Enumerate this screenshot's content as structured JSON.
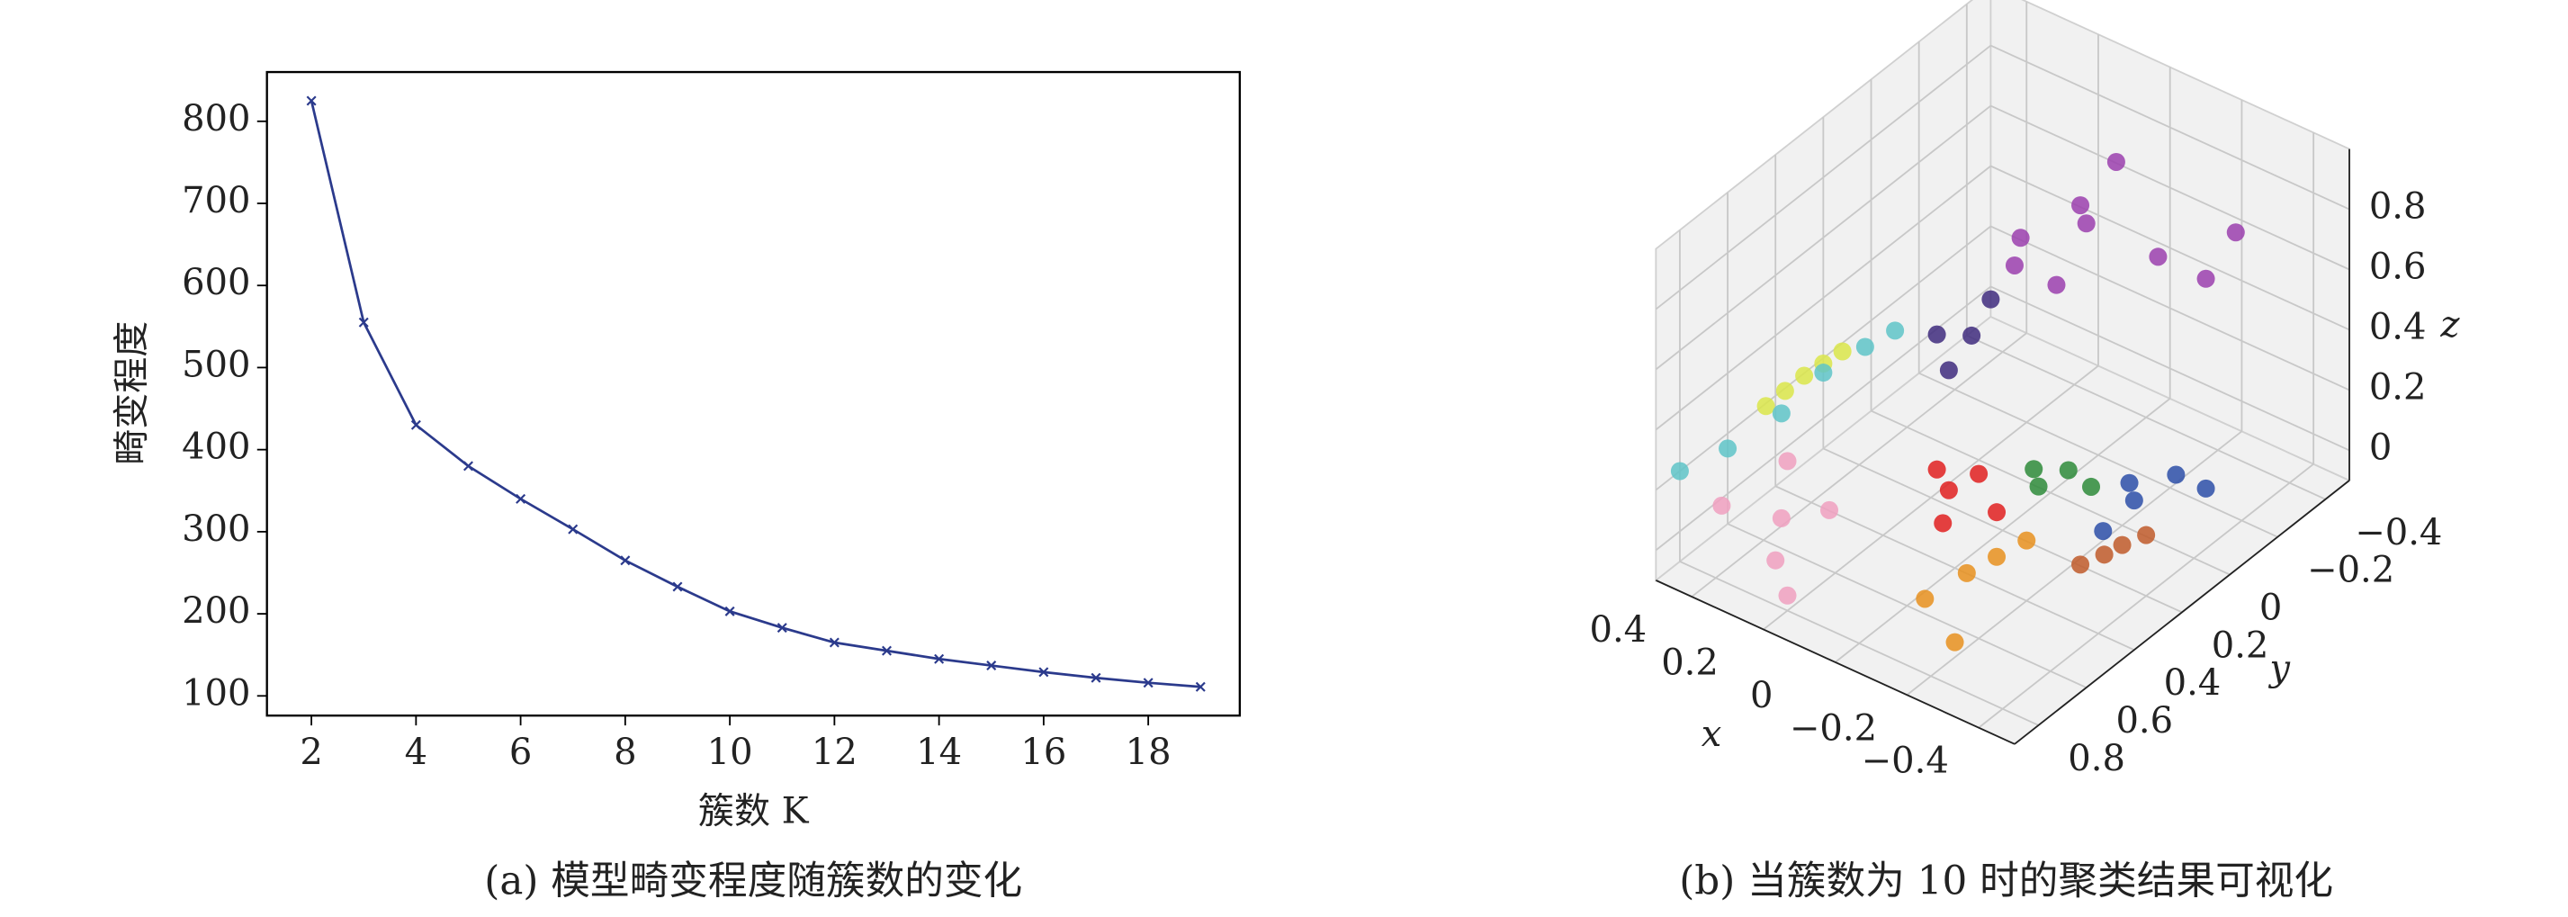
{
  "chart_data": [
    {
      "type": "line",
      "xlabel": "簇数 K",
      "ylabel": "畸变程度",
      "caption": "(a) 模型畸变程度随簇数的变化",
      "x": [
        2,
        3,
        4,
        5,
        6,
        7,
        8,
        9,
        10,
        11,
        12,
        13,
        14,
        15,
        16,
        17,
        18,
        19
      ],
      "values": [
        825,
        555,
        430,
        380,
        340,
        303,
        265,
        233,
        203,
        183,
        165,
        155,
        145,
        137,
        129,
        122,
        116,
        111
      ],
      "color": "#2b3a8c",
      "xlim": [
        1.15,
        19.75
      ],
      "ylim": [
        76,
        860
      ],
      "xticks": [
        2,
        4,
        6,
        8,
        10,
        12,
        14,
        16,
        18
      ],
      "yticks": [
        100,
        200,
        300,
        400,
        500,
        600,
        700,
        800
      ]
    },
    {
      "type": "scatter3d",
      "xlabel": "x",
      "ylabel": "y",
      "zlabel": "z",
      "caption": "(b) 当簇数为 10 时的聚类结果可视化",
      "xlim": [
        -0.5,
        0.5
      ],
      "ylim": [
        -0.5,
        0.9
      ],
      "zlim": [
        -0.1,
        1.0
      ],
      "xticks": [
        0.4,
        0.2,
        0,
        {
          "value": -0.2,
          "label": "−0.2"
        },
        {
          "value": -0.4,
          "label": "−0.4"
        }
      ],
      "yticks": [
        {
          "value": -0.4,
          "label": "−0.4"
        },
        {
          "value": -0.2,
          "label": "−0.2"
        },
        0,
        0.2,
        0.4,
        0.6,
        0.8
      ],
      "zticks": [
        0,
        0.2,
        0.4,
        0.6,
        0.8
      ],
      "series": [
        {
          "color": "#dbe64a",
          "x": [
            0.46,
            0.44,
            0.42,
            0.4,
            0.38
          ],
          "y": [
            0.5,
            0.45,
            0.4,
            0.35,
            0.3
          ],
          "z": [
            0.25,
            0.28,
            0.31,
            0.33,
            0.35
          ]
        },
        {
          "color": "#5fc4c8",
          "x": [
            0.5,
            0.5,
            0.45,
            0.4,
            0.35,
            0.3
          ],
          "y": [
            0.8,
            0.6,
            0.45,
            0.35,
            0.25,
            0.2
          ],
          "z": [
            0.2,
            0.15,
            0.2,
            0.3,
            0.35,
            0.4
          ]
        },
        {
          "color": "#f0a0c0",
          "x": [
            0.45,
            0.35,
            0.3,
            0.2,
            0.25,
            0.4
          ],
          "y": [
            0.7,
            0.6,
            0.7,
            0.8,
            0.55,
            0.5
          ],
          "z": [
            0.05,
            0.0,
            -0.05,
            -0.05,
            0.05,
            0.1
          ]
        },
        {
          "color": "#3f2c7e",
          "x": [
            0.15,
            0.12,
            0.1,
            0.15
          ],
          "y": [
            0.2,
            0.15,
            0.1,
            0.25
          ],
          "z": [
            0.35,
            0.45,
            0.55,
            0.5
          ]
        },
        {
          "color": "#9b3fae",
          "x": [
            0.05,
            0.0,
            -0.05,
            0.1,
            -0.1,
            -0.2,
            -0.25,
            0.05,
            -0.05
          ],
          "y": [
            -0.1,
            -0.15,
            -0.2,
            0.0,
            -0.3,
            -0.35,
            -0.4,
            0.05,
            -0.05
          ],
          "z": [
            0.5,
            0.7,
            0.9,
            0.6,
            0.55,
            0.5,
            0.65,
            0.75,
            0.85
          ]
        },
        {
          "color": "#e02020",
          "x": [
            0.05,
            0.0,
            0.05,
            -0.05,
            0.0
          ],
          "y": [
            0.35,
            0.3,
            0.4,
            0.3,
            0.45
          ],
          "z": [
            0.1,
            0.15,
            0.2,
            0.05,
            0.08
          ]
        },
        {
          "color": "#2e8b3a",
          "x": [
            -0.1,
            -0.15,
            -0.12,
            -0.18
          ],
          "y": [
            0.2,
            0.15,
            0.25,
            0.1
          ],
          "z": [
            0.1,
            0.15,
            0.2,
            0.08
          ]
        },
        {
          "color": "#2d4fa8",
          "x": [
            -0.3,
            -0.35,
            -0.28,
            -0.4,
            -0.32
          ],
          "y": [
            0.1,
            0.0,
            0.2,
            -0.05,
            0.15
          ],
          "z": [
            0.1,
            0.15,
            0.05,
            0.1,
            0.2
          ]
        },
        {
          "color": "#e8901e",
          "x": [
            -0.1,
            -0.15,
            -0.2,
            -0.05,
            -0.2
          ],
          "y": [
            0.5,
            0.45,
            0.4,
            0.6,
            0.7
          ],
          "z": [
            0.0,
            0.05,
            0.1,
            -0.05,
            -0.05
          ]
        },
        {
          "color": "#c05a2a",
          "x": [
            -0.45,
            -0.47,
            -0.48,
            -0.5
          ],
          "y": [
            0.55,
            0.48,
            0.42,
            0.35
          ],
          "z": [
            0.25,
            0.25,
            0.25,
            0.25
          ]
        }
      ]
    }
  ]
}
